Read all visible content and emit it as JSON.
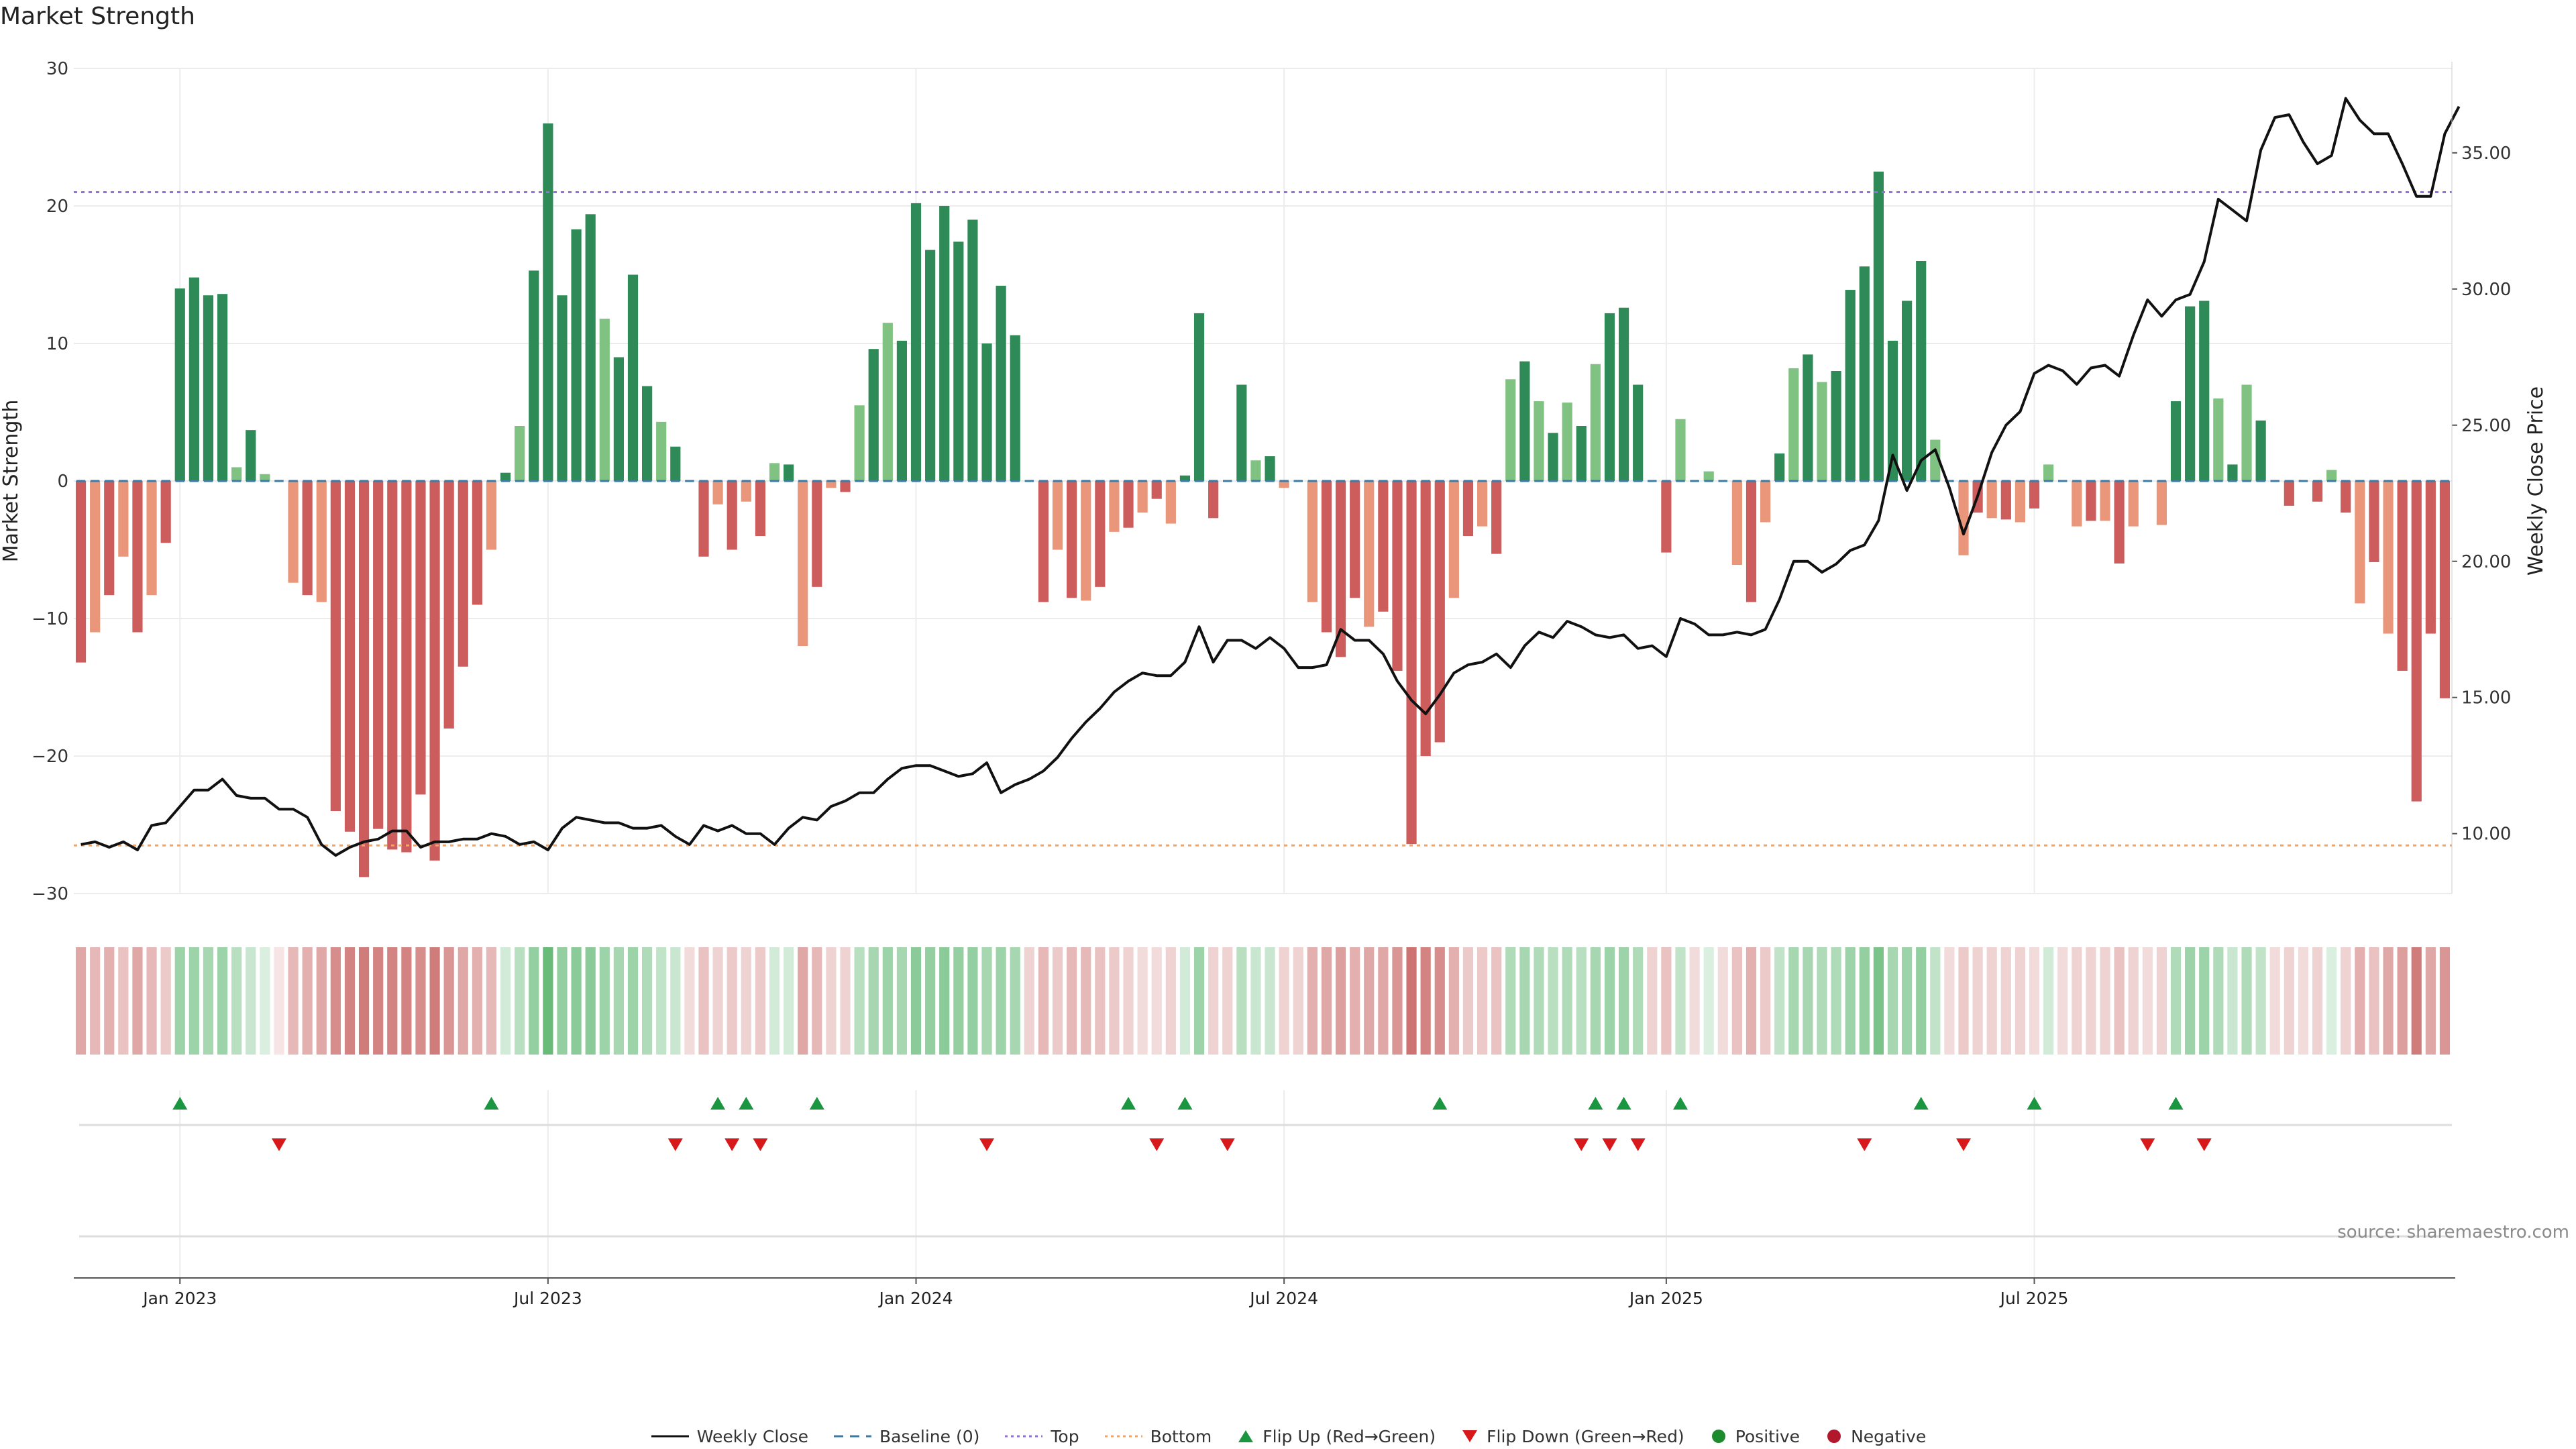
{
  "title": "Market Strength",
  "source": "source: sharemaestro.com",
  "chart_data": {
    "type": "bar",
    "y_label_left": "Market Strength",
    "y_label_right": "Weekly Close Price",
    "left_ylim": [
      -30,
      30
    ],
    "left_ticks": [
      -30,
      -20,
      -10,
      0,
      10,
      20,
      30
    ],
    "right_ylim": [
      7.8,
      38.1
    ],
    "right_ticks": [
      "10.00",
      "15.00",
      "20.00",
      "25.00",
      "30.00",
      "35.00"
    ],
    "top_level": 21,
    "bottom_level": -26.5,
    "x_ticks": [
      "Jan 2023",
      "Jul 2023",
      "Jan 2024",
      "Jul 2024",
      "Jan 2025",
      "Jul 2025"
    ],
    "x_tick_weeks": [
      7,
      33,
      59,
      85,
      112,
      138
    ],
    "colors": {
      "pos_strong": "#2e8b57",
      "pos_weak": "#7fc281",
      "neg_strong": "#cd5c5c",
      "neg_weak": "#e9967a",
      "close": "#111111",
      "top": "#9370db",
      "bottom": "#f4a460",
      "flip_up": "#1a9641",
      "flip_down": "#d7191c",
      "heat_pos": "#4daf62",
      "heat_neg": "#c0504d"
    },
    "strength": [
      -13.2,
      -11,
      -8.3,
      -5.5,
      -11,
      -8.3,
      -4.5,
      14,
      14.8,
      13.5,
      13.6,
      1,
      3.7,
      0.5,
      0,
      -7.4,
      -8.3,
      -8.8,
      -24,
      -25.5,
      -28.8,
      -25.3,
      -26.8,
      -27,
      -22.8,
      -27.6,
      -18,
      -13.5,
      -9,
      -5,
      0.6,
      4,
      15.3,
      26,
      13.5,
      18.3,
      19.4,
      11.8,
      9,
      15,
      6.9,
      4.3,
      2.5,
      0,
      -5.5,
      -1.7,
      -5,
      -1.5,
      -4,
      1.3,
      1.2,
      -12,
      -7.7,
      -0.5,
      -0.8,
      5.5,
      9.6,
      11.5,
      10.2,
      20.2,
      16.8,
      20,
      17.4,
      19,
      10,
      14.2,
      10.6,
      0,
      -8.8,
      -5,
      -8.5,
      -8.7,
      -7.7,
      -3.7,
      -3.4,
      -2.3,
      -1.3,
      -3.1,
      0.4,
      12.2,
      -2.7,
      0,
      7,
      1.5,
      1.8,
      -0.5,
      0,
      -8.8,
      -11,
      -12.8,
      -8.5,
      -10.6,
      -9.5,
      -13.8,
      -26.4,
      -20,
      -19,
      -8.5,
      -4,
      -3.3,
      -5.3,
      7.4,
      8.7,
      5.8,
      3.5,
      5.7,
      4,
      8.5,
      12.2,
      12.6,
      7,
      0,
      -5.2,
      4.5,
      0,
      0.7,
      0,
      -6.1,
      -8.8,
      -3,
      2,
      8.2,
      9.2,
      7.2,
      8,
      13.9,
      15.6,
      22.5,
      10.2,
      13.1,
      16,
      3,
      0,
      -5.4,
      -2.3,
      -2.7,
      -2.8,
      -3,
      -2,
      1.2,
      0,
      -3.3,
      -2.9,
      -2.9,
      -6,
      -3.3,
      0,
      -3.2,
      5.8,
      12.7,
      13.1,
      6,
      1.2,
      7,
      4.4,
      0,
      -1.8,
      0,
      -1.5,
      0.8,
      -2.3,
      -8.9,
      -5.9,
      -11.1,
      -13.8,
      -23.3,
      -11.1,
      -15.8
    ],
    "weekly_close": [
      9.6,
      9.7,
      9.5,
      9.7,
      9.4,
      10.3,
      10.4,
      11,
      11.6,
      11.6,
      12,
      11.4,
      11.3,
      11.3,
      10.9,
      10.9,
      10.6,
      9.6,
      9.2,
      9.5,
      9.7,
      9.8,
      10.1,
      10.1,
      9.5,
      9.7,
      9.7,
      9.8,
      9.8,
      10,
      9.9,
      9.6,
      9.7,
      9.4,
      10.2,
      10.6,
      10.5,
      10.4,
      10.4,
      10.2,
      10.2,
      10.3,
      9.9,
      9.6,
      10.3,
      10.1,
      10.3,
      10,
      10,
      9.6,
      10.2,
      10.6,
      10.5,
      11,
      11.2,
      11.5,
      11.5,
      12,
      12.4,
      12.5,
      12.5,
      12.3,
      12.1,
      12.2,
      12.6,
      11.5,
      11.8,
      12,
      12.3,
      12.8,
      13.5,
      14.1,
      14.6,
      15.2,
      15.6,
      15.9,
      15.8,
      15.8,
      16.3,
      17.6,
      16.3,
      17.1,
      17.1,
      16.8,
      17.2,
      16.8,
      16.1,
      16.1,
      16.2,
      17.5,
      17.1,
      17.1,
      16.6,
      15.6,
      14.9,
      14.4,
      15.1,
      15.9,
      16.2,
      16.3,
      16.6,
      16.1,
      16.9,
      17.4,
      17.2,
      17.8,
      17.6,
      17.3,
      17.2,
      17.3,
      16.8,
      16.9,
      16.5,
      17.9,
      17.7,
      17.3,
      17.3,
      17.4,
      17.3,
      17.5,
      18.6,
      20,
      20,
      19.6,
      19.9,
      20.4,
      20.6,
      21.5,
      23.9,
      22.6,
      23.7,
      24.1,
      22.7,
      21,
      22.4,
      24,
      25,
      25.5,
      26.9,
      27.2,
      27,
      26.5,
      27.1,
      27.2,
      26.8,
      28.3,
      29.6,
      29,
      29.6,
      29.8,
      31,
      33.3,
      32.9,
      32.5,
      35.1,
      36.3,
      36.4,
      35.4,
      34.6,
      34.9,
      37,
      36.2,
      35.7,
      35.7,
      34.6,
      33.4,
      33.4,
      35.7,
      36.7
    ],
    "heat_intensity": [
      0.5,
      0.4,
      0.45,
      0.35,
      0.5,
      0.4,
      0.3,
      0.55,
      0.55,
      0.5,
      0.55,
      0.4,
      0.3,
      0.2,
      0.15,
      0.4,
      0.45,
      0.5,
      0.65,
      0.7,
      0.75,
      0.7,
      0.7,
      0.7,
      0.65,
      0.75,
      0.6,
      0.5,
      0.45,
      0.4,
      0.25,
      0.4,
      0.6,
      0.85,
      0.6,
      0.65,
      0.65,
      0.55,
      0.5,
      0.55,
      0.45,
      0.35,
      0.3,
      0.2,
      0.35,
      0.25,
      0.3,
      0.25,
      0.3,
      0.25,
      0.25,
      0.5,
      0.4,
      0.25,
      0.25,
      0.4,
      0.5,
      0.55,
      0.5,
      0.65,
      0.6,
      0.65,
      0.6,
      0.6,
      0.5,
      0.55,
      0.5,
      0.25,
      0.4,
      0.3,
      0.4,
      0.4,
      0.35,
      0.3,
      0.25,
      0.2,
      0.2,
      0.25,
      0.25,
      0.55,
      0.25,
      0.25,
      0.4,
      0.3,
      0.3,
      0.25,
      0.25,
      0.45,
      0.5,
      0.55,
      0.45,
      0.5,
      0.5,
      0.6,
      0.8,
      0.7,
      0.65,
      0.45,
      0.3,
      0.3,
      0.35,
      0.45,
      0.5,
      0.45,
      0.4,
      0.45,
      0.4,
      0.5,
      0.55,
      0.55,
      0.45,
      0.25,
      0.35,
      0.35,
      0.2,
      0.2,
      0.2,
      0.35,
      0.45,
      0.3,
      0.35,
      0.5,
      0.5,
      0.45,
      0.45,
      0.55,
      0.6,
      0.75,
      0.5,
      0.55,
      0.6,
      0.35,
      0.2,
      0.3,
      0.25,
      0.25,
      0.25,
      0.25,
      0.2,
      0.25,
      0.2,
      0.25,
      0.25,
      0.25,
      0.35,
      0.25,
      0.2,
      0.25,
      0.45,
      0.55,
      0.55,
      0.45,
      0.3,
      0.45,
      0.35,
      0.2,
      0.25,
      0.2,
      0.25,
      0.2,
      0.25,
      0.45,
      0.35,
      0.5,
      0.55,
      0.75,
      0.5,
      0.6
    ],
    "flip_up_weeks": [
      7,
      29,
      45,
      47,
      52,
      74,
      78,
      96,
      107,
      109,
      113,
      130,
      138,
      148
    ],
    "flip_down_weeks": [
      14,
      42,
      46,
      48,
      64,
      76,
      81,
      106,
      108,
      110,
      126,
      133,
      146,
      150
    ]
  },
  "legend": [
    {
      "label": "Weekly Close",
      "kind": "line",
      "color": "#111111"
    },
    {
      "label": "Baseline (0)",
      "kind": "dash",
      "color": "#3a7ca5"
    },
    {
      "label": "Top",
      "kind": "dot",
      "color": "#9370db"
    },
    {
      "label": "Bottom",
      "kind": "dot",
      "color": "#f4a460"
    },
    {
      "label": "Flip Up (Red→Green)",
      "kind": "tri-up",
      "color": "#1a9641"
    },
    {
      "label": "Flip Down (Green→Red)",
      "kind": "tri-down",
      "color": "#d7191c"
    },
    {
      "label": "Positive",
      "kind": "circle",
      "color": "#1e8a2e"
    },
    {
      "label": "Negative",
      "kind": "circle",
      "color": "#b2182b"
    }
  ]
}
